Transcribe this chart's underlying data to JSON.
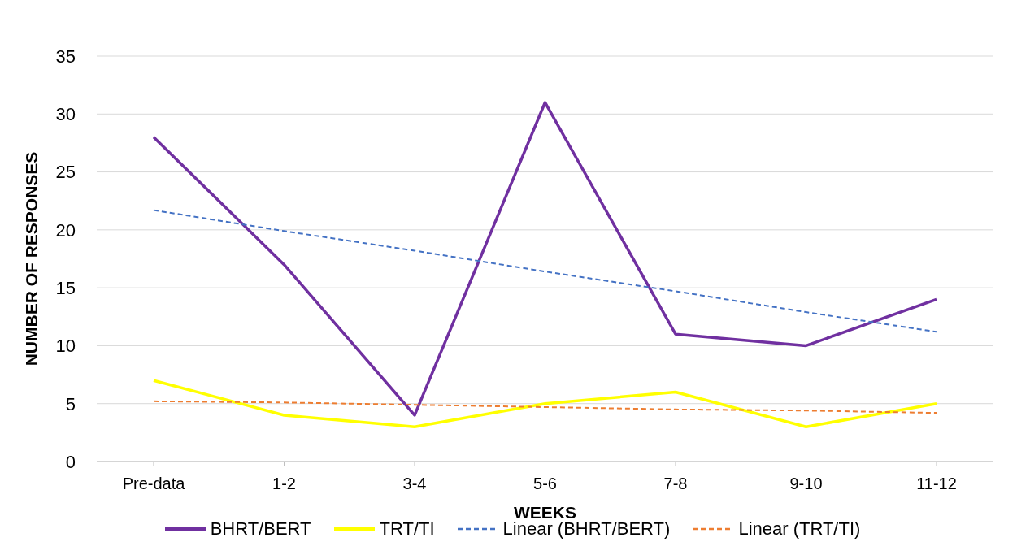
{
  "chart_data": {
    "type": "line",
    "xlabel": "WEEKS",
    "ylabel": "NUMBER OF RESPONSES",
    "categories": [
      "Pre-data",
      "1-2",
      "3-4",
      "5-6",
      "7-8",
      "9-10",
      "11-12"
    ],
    "series": [
      {
        "name": "BHRT/BERT",
        "color": "#7030a0",
        "values": [
          28,
          17,
          4,
          31,
          11,
          10,
          14
        ],
        "line_style": "solid"
      },
      {
        "name": "TRT/TI",
        "color": "#ffff00",
        "values": [
          7,
          4,
          3,
          5,
          6,
          3,
          5
        ],
        "line_style": "solid"
      },
      {
        "name": "Linear (BHRT/BERT)",
        "color": "#4472c4",
        "values": [
          21.7,
          19.9,
          18.2,
          16.4,
          14.7,
          12.9,
          11.2
        ],
        "line_style": "dashed"
      },
      {
        "name": "Linear (TRT/TI)",
        "color": "#ed7d31",
        "values": [
          5.2,
          5.1,
          4.9,
          4.7,
          4.5,
          4.4,
          4.2
        ],
        "line_style": "dashed"
      }
    ],
    "ylim": [
      0,
      35
    ],
    "yticks": [
      0,
      5,
      10,
      15,
      20,
      25,
      30,
      35
    ],
    "grid": "y",
    "legend": "bottom",
    "marker": "none"
  }
}
